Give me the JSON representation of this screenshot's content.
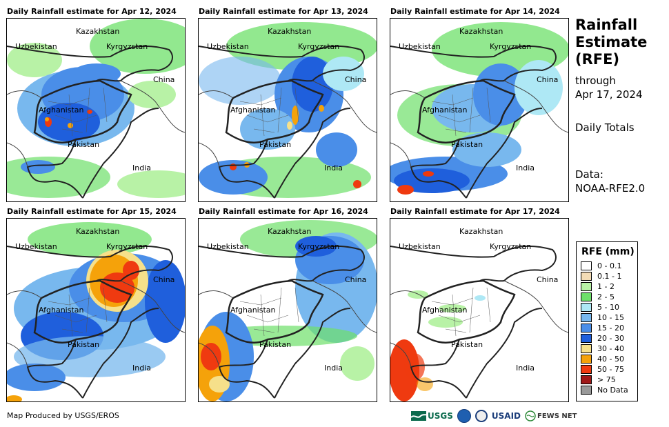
{
  "panels": [
    {
      "title": "Daily Rainfall estimate for Apr 12, 2024"
    },
    {
      "title": "Daily Rainfall estimate for Apr 13, 2024"
    },
    {
      "title": "Daily Rainfall estimate for Apr 14, 2024"
    },
    {
      "title": "Daily Rainfall estimate for Apr 15, 2024"
    },
    {
      "title": "Daily Rainfall estimate for Apr 16, 2024"
    },
    {
      "title": "Daily Rainfall estimate for Apr 17, 2024"
    }
  ],
  "map_labels": {
    "kazakhstan": "Kazakhstan",
    "uzbekistan": "Uzbekistan",
    "kyrgyzstan": "Kyrgyzstan",
    "china": "China",
    "afghanistan": "Afghanistan",
    "pakistan": "Pakistan",
    "india": "India"
  },
  "sidebar": {
    "title_line1": "Rainfall",
    "title_line2": "Estimate",
    "title_line3": "(RFE)",
    "through": "through",
    "date": "Apr 17, 2024",
    "totals": "Daily Totals",
    "data_label": "Data:",
    "data_source": "NOAA-RFE2.0"
  },
  "legend": {
    "title": "RFE (mm)",
    "items": [
      {
        "label": "0 - 0.1",
        "color": "#ffffff"
      },
      {
        "label": "0.1 - 1",
        "color": "#f3dcb6"
      },
      {
        "label": "1 - 2",
        "color": "#b8f2a6"
      },
      {
        "label": "2 - 5",
        "color": "#6ee06a"
      },
      {
        "label": "5 - 10",
        "color": "#aee8f5"
      },
      {
        "label": "10 - 15",
        "color": "#78b8ee"
      },
      {
        "label": "15 - 20",
        "color": "#4a8ee8"
      },
      {
        "label": "20 - 30",
        "color": "#1f5fdc"
      },
      {
        "label": "30 - 40",
        "color": "#f6e08a"
      },
      {
        "label": "40 - 50",
        "color": "#f5a20a"
      },
      {
        "label": "50 - 75",
        "color": "#ef3a10"
      },
      {
        "label": "> 75",
        "color": "#a01818"
      },
      {
        "label": "No Data",
        "color": "#999999"
      }
    ]
  },
  "footer": {
    "credit": "Map Produced by USGS/EROS"
  },
  "logos": {
    "usgs": "USGS",
    "usaid": "USAID",
    "fewsnet": "FEWS NET"
  }
}
